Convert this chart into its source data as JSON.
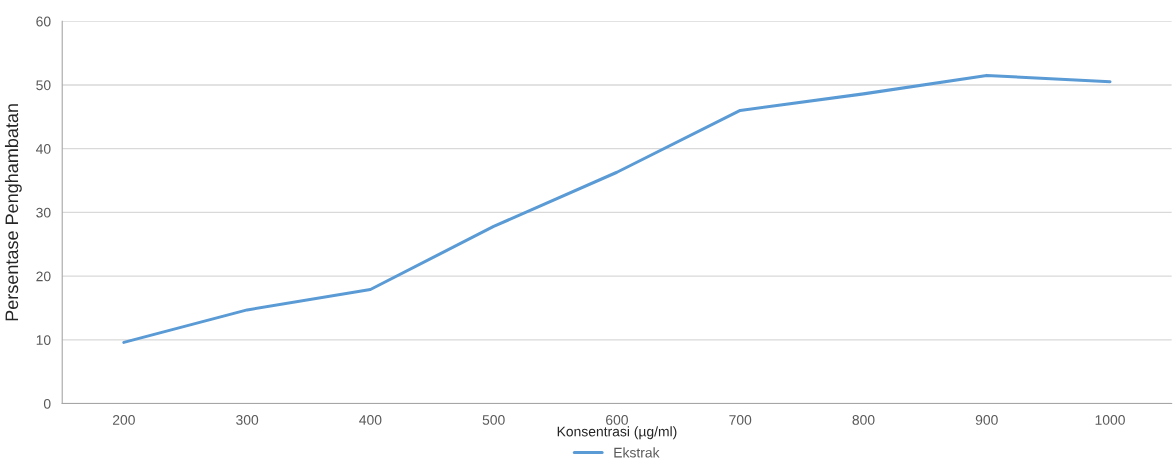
{
  "chart_data": {
    "type": "line",
    "xlabel": "Konsentrasi (µg/ml)",
    "ylabel": "Persentase Penghambatan",
    "categories": [
      "200",
      "300",
      "400",
      "500",
      "600",
      "700",
      "800",
      "900",
      "1000"
    ],
    "series": [
      {
        "name": "Ekstrak",
        "color": "#5b9bd5",
        "values": [
          9.6,
          14.7,
          17.9,
          27.8,
          36.3,
          46.0,
          48.6,
          51.5,
          50.5
        ]
      }
    ],
    "ylim": [
      0,
      60
    ],
    "yticks": [
      0,
      10,
      20,
      30,
      40,
      50,
      60
    ],
    "grid": "y",
    "legend": "bottom",
    "marker": "none",
    "line_style": "solid"
  }
}
